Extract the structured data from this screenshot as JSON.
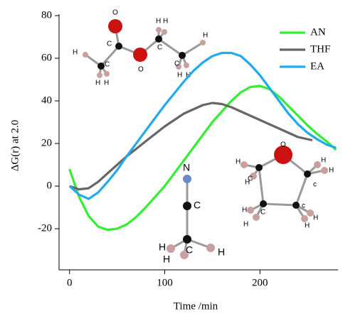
{
  "chart_data": {
    "type": "line",
    "x_label": "Time /min",
    "y_label": "ΔG(r) at 2.0",
    "xlim": [
      -11,
      282
    ],
    "xticks": [
      0,
      100,
      200
    ],
    "ylim": [
      -39.3,
      80
    ],
    "yticks": [
      -20,
      0,
      20,
      40,
      60,
      80
    ],
    "legend": "upper right",
    "series": [
      {
        "name": "AN",
        "color": "#33ee33",
        "x": [
          0,
          10,
          20,
          30,
          40,
          50,
          60,
          70,
          80,
          90,
          100,
          110,
          120,
          130,
          140,
          150,
          160,
          170,
          180,
          190,
          200,
          210,
          220,
          230,
          240,
          250,
          260,
          270,
          280
        ],
        "values": [
          8,
          -5,
          -14,
          -19,
          -20.5,
          -20,
          -18,
          -14.5,
          -10,
          -5,
          0,
          6,
          12,
          18,
          24,
          30,
          35,
          40,
          44,
          46.5,
          47,
          45.5,
          42,
          37.5,
          33,
          28.5,
          24.5,
          21,
          17
        ]
      },
      {
        "name": "THF",
        "color": "#666666",
        "x": [
          0,
          10,
          20,
          30,
          40,
          50,
          60,
          70,
          80,
          90,
          100,
          110,
          120,
          130,
          140,
          150,
          160,
          170,
          180,
          190,
          200,
          210,
          220,
          230,
          240,
          255
        ],
        "values": [
          0,
          -1.5,
          -1,
          2,
          6,
          10,
          14,
          17.5,
          21,
          24.5,
          28,
          31,
          34,
          36,
          38,
          39,
          38.5,
          37,
          35,
          33,
          31,
          29,
          27,
          25,
          23,
          21.5
        ]
      },
      {
        "name": "EA",
        "color": "#22aaee",
        "x": [
          0,
          10,
          20,
          30,
          40,
          50,
          60,
          70,
          80,
          90,
          100,
          110,
          120,
          130,
          140,
          150,
          160,
          170,
          180,
          190,
          200,
          210,
          220,
          230,
          240,
          250,
          260,
          270,
          280
        ],
        "values": [
          0,
          -4,
          -6,
          -3,
          2,
          7.5,
          14,
          20,
          26,
          32,
          38,
          43.5,
          49,
          54,
          58,
          61,
          62.5,
          62.5,
          61,
          57,
          52,
          46,
          40,
          34,
          29,
          25,
          22,
          19.5,
          18
        ]
      }
    ],
    "annotations": [
      "O",
      "C",
      "O",
      "H",
      "C",
      "H",
      "H",
      "H",
      "H",
      "C",
      "C",
      "H",
      "H",
      "H",
      "N",
      "C",
      "C",
      "H",
      "H",
      "H",
      "O",
      "c",
      "C",
      "C",
      "c",
      "H",
      "H",
      "H",
      "H",
      "H",
      "H",
      "H",
      "H"
    ]
  }
}
